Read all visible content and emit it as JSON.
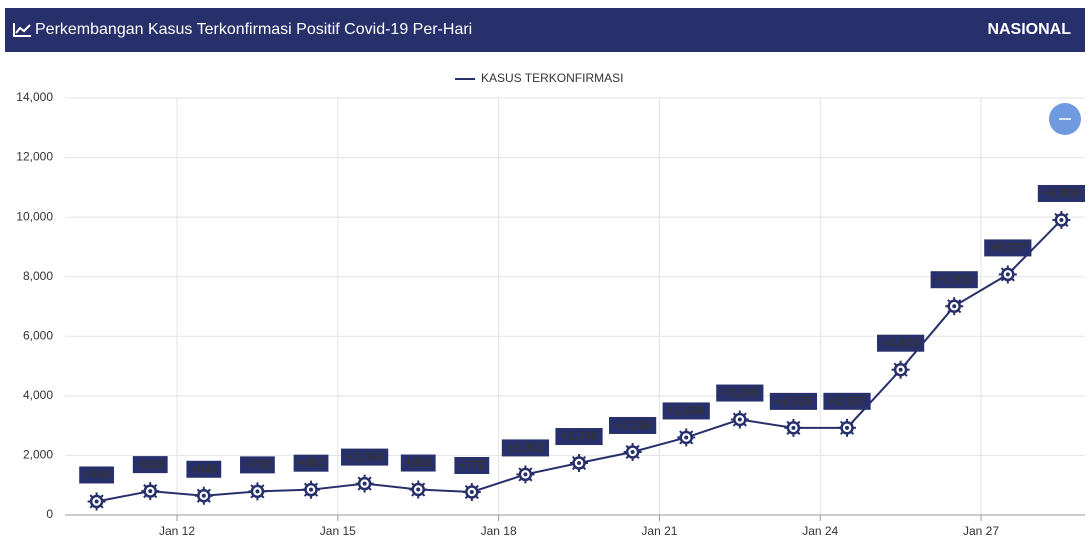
{
  "header": {
    "title": "Perkembangan Kasus Terkonfirmasi Positif Covid-19 Per-Hari",
    "region": "NASIONAL"
  },
  "chart_data": {
    "type": "line",
    "x": [
      10.5,
      11.5,
      12.5,
      13.5,
      14.5,
      15.5,
      16.5,
      17.5,
      18.5,
      19.5,
      20.5,
      21.5,
      22.5,
      23.5,
      24.5,
      25.5,
      26.5,
      27.5,
      28.5
    ],
    "series": [
      {
        "name": "KASUS TERKONFIRMASI",
        "color": "#27306b",
        "values": [
          454,
          802,
          646,
          793,
          850,
          1054,
          855,
          772,
          1362,
          1745,
          2116,
          2604,
          3205,
          2925,
          2927,
          4878,
          7010,
          8077,
          9905
        ],
        "value_labels": [
          "+454",
          "+802",
          "+646",
          "+793",
          "+850",
          "+1,054",
          "+855",
          "+772",
          "+1,362",
          "+1,745",
          "+2,116",
          "+2,604",
          "+3,205",
          "+2,925",
          "+2,927",
          "+4,878",
          "+7,010",
          "+8,077",
          "+9,905"
        ]
      }
    ],
    "xlim": [
      9.91,
      28.94
    ],
    "xticks": [
      {
        "value": 12,
        "label": "Jan 12"
      },
      {
        "value": 15,
        "label": "Jan 15"
      },
      {
        "value": 18,
        "label": "Jan 18"
      },
      {
        "value": 21,
        "label": "Jan 21"
      },
      {
        "value": 24,
        "label": "Jan 24"
      },
      {
        "value": 27,
        "label": "Jan 27"
      }
    ],
    "ylim": [
      0,
      14000
    ],
    "yticks": [
      0,
      {
        "value": 2000,
        "label": "2,000"
      },
      {
        "value": 4000,
        "label": "4,000"
      },
      {
        "value": 6000,
        "label": "6,000"
      },
      {
        "value": 8000,
        "label": "8,000"
      },
      {
        "value": 10000,
        "label": "10,000"
      },
      {
        "value": 12000,
        "label": "12,000"
      },
      {
        "value": 14000,
        "label": "14,000"
      }
    ],
    "grid": true,
    "legend": "top"
  }
}
